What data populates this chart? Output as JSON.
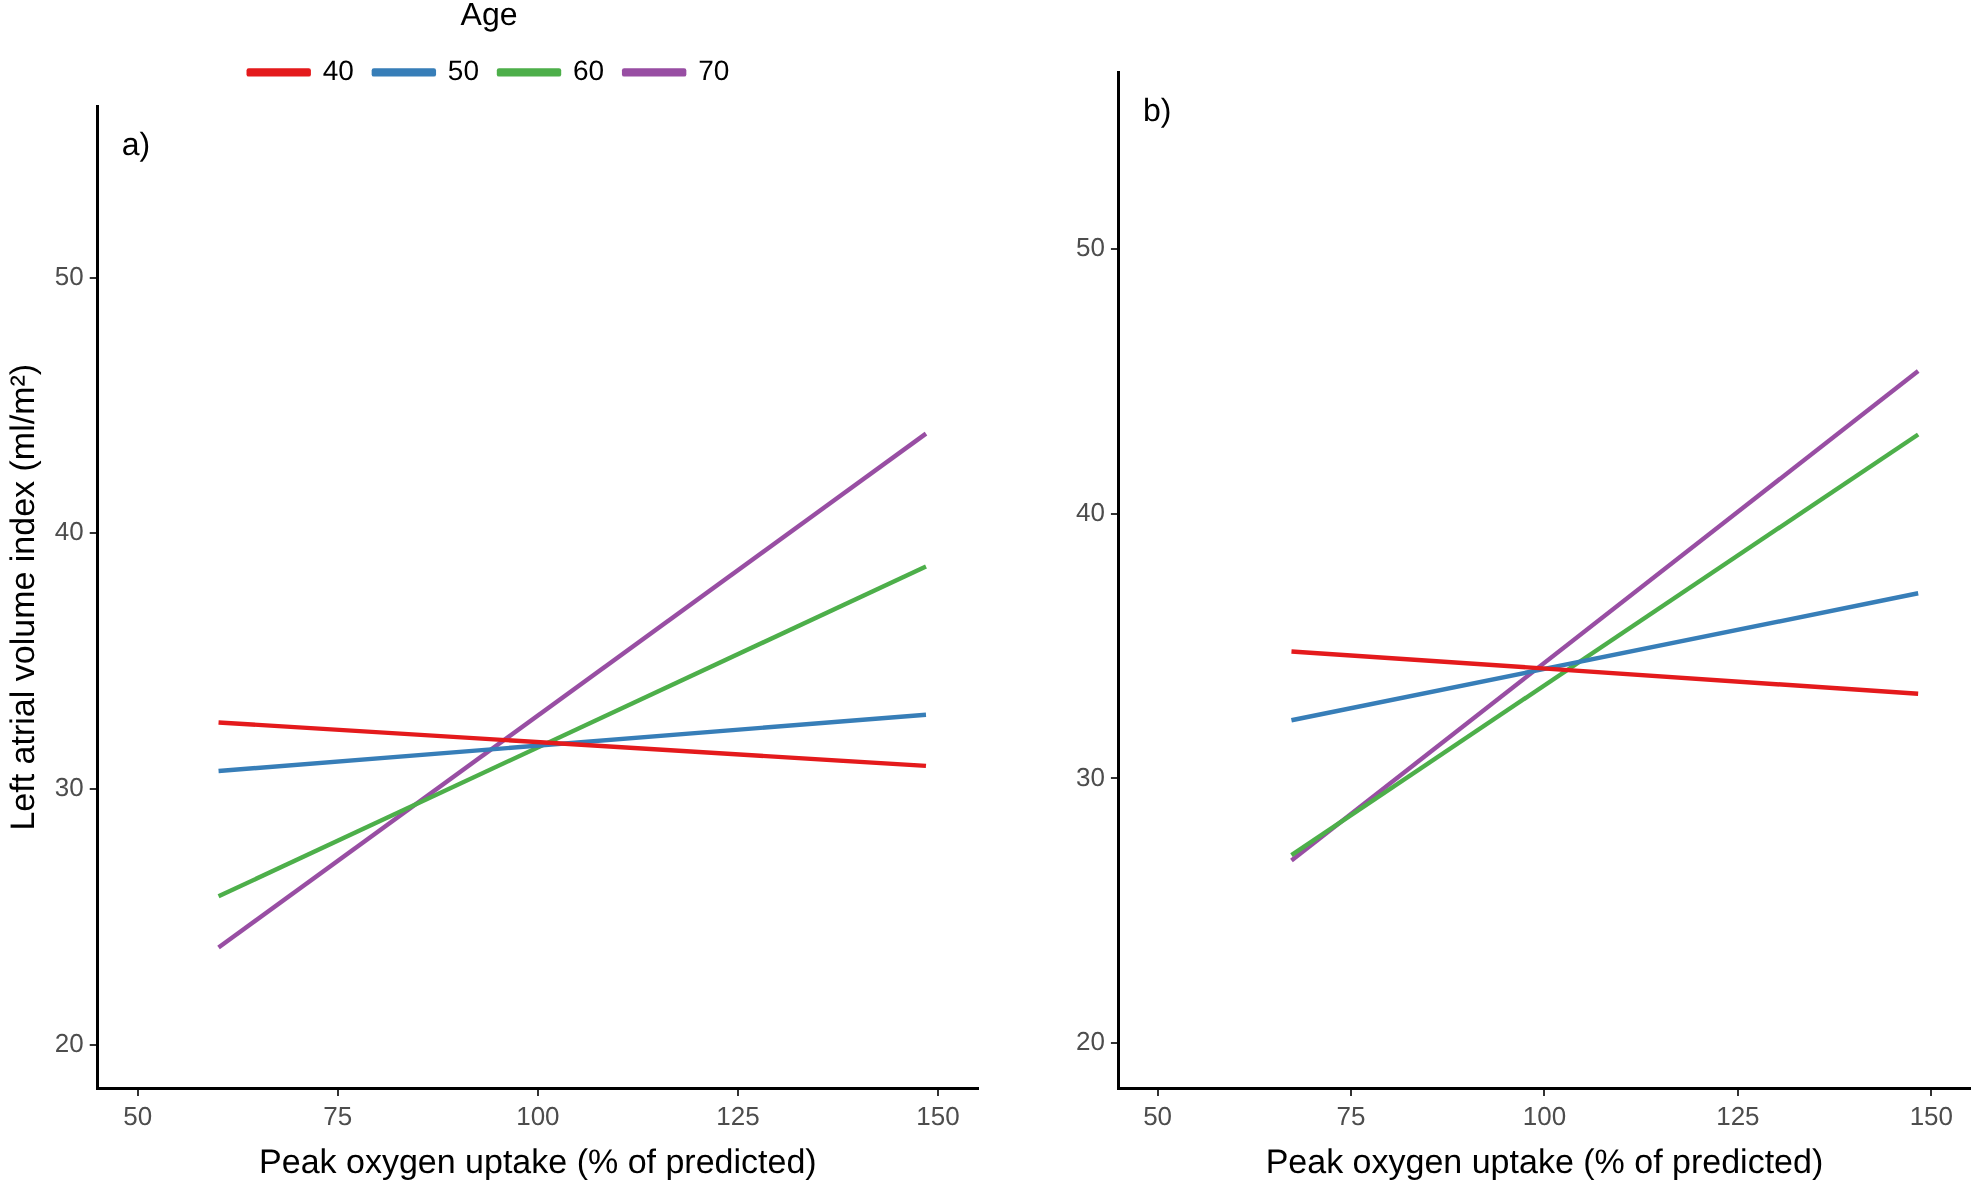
{
  "chart_data": [
    {
      "type": "line",
      "title": "a)",
      "xlabel": "Peak oxygen uptake (% of predicted)",
      "ylabel": "Left atrial volume index (ml/m²)",
      "legend_title": "Age",
      "legend": "top",
      "marker": "none",
      "line_style": "solid",
      "grid": false,
      "x": [
        60.1,
        148.5
      ],
      "series": [
        {
          "name": "40",
          "color": "#e41a1c",
          "values": [
            32.6,
            30.9
          ]
        },
        {
          "name": "50",
          "color": "#377eb8",
          "values": [
            30.7,
            32.9
          ]
        },
        {
          "name": "60",
          "color": "#4daf4a",
          "values": [
            25.8,
            38.7
          ]
        },
        {
          "name": "70",
          "color": "#984ea3",
          "values": [
            23.8,
            43.9
          ]
        }
      ],
      "xlim": [
        45,
        155
      ],
      "xticks": [
        50,
        75,
        100,
        125,
        150
      ],
      "ylim": [
        18.3,
        56.7
      ],
      "yticks": [
        20,
        30,
        40,
        50
      ]
    },
    {
      "type": "line",
      "title": "b)",
      "xlabel": "Peak oxygen uptake (% of predicted)",
      "marker": "none",
      "line_style": "solid",
      "grid": false,
      "x": [
        67.3,
        148.3
      ],
      "series": [
        {
          "color": "#e41a1c",
          "values": [
            34.8,
            33.2
          ]
        },
        {
          "color": "#377eb8",
          "values": [
            32.2,
            37.0
          ]
        },
        {
          "color": "#4daf4a",
          "values": [
            27.1,
            43.0
          ]
        },
        {
          "color": "#984ea3",
          "values": [
            26.9,
            45.4
          ]
        }
      ],
      "xlim": [
        45,
        155
      ],
      "xticks": [
        50,
        75,
        100,
        125,
        150
      ],
      "ylim": [
        18.3,
        56.7
      ],
      "yticks": [
        20,
        30,
        40,
        50
      ]
    }
  ]
}
